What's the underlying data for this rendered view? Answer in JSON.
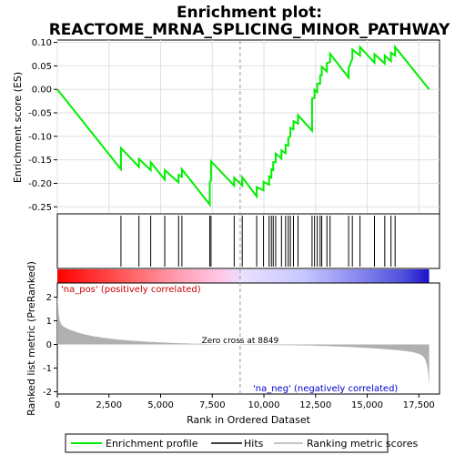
{
  "chart_data": {
    "type": "line",
    "title_line1": "Enrichment plot:",
    "title_line2": "REACTOME_MRNA_SPLICING_MINOR_PATHWAY",
    "es_panel": {
      "ylabel": "Enrichment score (ES)",
      "ylim": [
        -0.265,
        0.105
      ],
      "yticks": [
        "0.10",
        "0.05",
        "0.00",
        "-0.05",
        "-0.10",
        "-0.15",
        "-0.20",
        "-0.25"
      ],
      "ytick_values": [
        0.1,
        0.05,
        0.0,
        -0.05,
        -0.1,
        -0.15,
        -0.2,
        -0.25
      ],
      "line_color": "#00ee00"
    },
    "rank_panel": {
      "ylabel": "Ranked list metric (PreRanked)",
      "ylim": [
        -2.1,
        2.6
      ],
      "yticks": [
        "2",
        "1",
        "0",
        "-1",
        "-2"
      ],
      "ytick_values": [
        2,
        1,
        0,
        -1,
        -2
      ],
      "fill_color": "#b0b0b0"
    },
    "xaxis": {
      "label": "Rank in Ordered Dataset",
      "xlim": [
        0,
        18500
      ],
      "ticks": [
        "0",
        "2,500",
        "5,000",
        "7,500",
        "10,000",
        "12,500",
        "15,000",
        "17,500"
      ],
      "tick_values": [
        0,
        2500,
        5000,
        7500,
        10000,
        12500,
        15000,
        17500
      ]
    },
    "n_genes": 18000,
    "zero_cross": 8849,
    "zero_cross_label": "Zero cross at 8849",
    "pos_label": "'na_pos' (positively correlated)",
    "neg_label": "'na_neg' (negatively correlated)",
    "hits": [
      3080,
      3950,
      4520,
      5200,
      5870,
      6030,
      7380,
      7440,
      8560,
      8950,
      9650,
      9980,
      10250,
      10360,
      10450,
      10570,
      10850,
      11050,
      11180,
      11280,
      11430,
      11650,
      12330,
      12450,
      12580,
      12720,
      12800,
      13050,
      13200,
      14100,
      14280,
      14650,
      15350,
      15850,
      16150,
      16350
    ],
    "es_points": [
      [
        0,
        0.0
      ],
      [
        3079,
        -0.17
      ],
      [
        3080,
        -0.125
      ],
      [
        3949,
        -0.165
      ],
      [
        3950,
        -0.148
      ],
      [
        4519,
        -0.172
      ],
      [
        4520,
        -0.155
      ],
      [
        5199,
        -0.192
      ],
      [
        5200,
        -0.172
      ],
      [
        5869,
        -0.198
      ],
      [
        5870,
        -0.182
      ],
      [
        6029,
        -0.186
      ],
      [
        6030,
        -0.17
      ],
      [
        7379,
        -0.245
      ],
      [
        7380,
        -0.198
      ],
      [
        7439,
        -0.193
      ],
      [
        7440,
        -0.153
      ],
      [
        8559,
        -0.205
      ],
      [
        8560,
        -0.188
      ],
      [
        8949,
        -0.205
      ],
      [
        8950,
        -0.187
      ],
      [
        9649,
        -0.228
      ],
      [
        9650,
        -0.208
      ],
      [
        9979,
        -0.215
      ],
      [
        9980,
        -0.197
      ],
      [
        10249,
        -0.203
      ],
      [
        10250,
        -0.185
      ],
      [
        10359,
        -0.188
      ],
      [
        10360,
        -0.17
      ],
      [
        10449,
        -0.172
      ],
      [
        10450,
        -0.155
      ],
      [
        10569,
        -0.155
      ],
      [
        10570,
        -0.137
      ],
      [
        10849,
        -0.147
      ],
      [
        10850,
        -0.13
      ],
      [
        11049,
        -0.136
      ],
      [
        11050,
        -0.118
      ],
      [
        11179,
        -0.12
      ],
      [
        11180,
        -0.103
      ],
      [
        11279,
        -0.1
      ],
      [
        11280,
        -0.082
      ],
      [
        11429,
        -0.085
      ],
      [
        11430,
        -0.068
      ],
      [
        11649,
        -0.073
      ],
      [
        11650,
        -0.055
      ],
      [
        12329,
        -0.088
      ],
      [
        12330,
        -0.02
      ],
      [
        12449,
        -0.018
      ],
      [
        12450,
        -0.001
      ],
      [
        12579,
        -0.006
      ],
      [
        12580,
        0.012
      ],
      [
        12719,
        0.012
      ],
      [
        12720,
        0.03
      ],
      [
        12799,
        0.03
      ],
      [
        12800,
        0.048
      ],
      [
        13049,
        0.038
      ],
      [
        13050,
        0.056
      ],
      [
        13199,
        0.058
      ],
      [
        13200,
        0.076
      ],
      [
        14099,
        0.025
      ],
      [
        14100,
        0.045
      ],
      [
        14279,
        0.065
      ],
      [
        14280,
        0.085
      ],
      [
        14649,
        0.072
      ],
      [
        14650,
        0.09
      ],
      [
        15349,
        0.057
      ],
      [
        15350,
        0.075
      ],
      [
        15849,
        0.055
      ],
      [
        15850,
        0.072
      ],
      [
        16149,
        0.06
      ],
      [
        16150,
        0.078
      ],
      [
        16349,
        0.072
      ],
      [
        16350,
        0.09
      ],
      [
        18000,
        0.0
      ]
    ]
  },
  "legend": {
    "items": [
      {
        "label": "Enrichment profile",
        "color": "#00ee00"
      },
      {
        "label": "Hits",
        "color": "#000000"
      },
      {
        "label": "Ranking metric scores",
        "color": "#b0b0b0"
      }
    ]
  }
}
